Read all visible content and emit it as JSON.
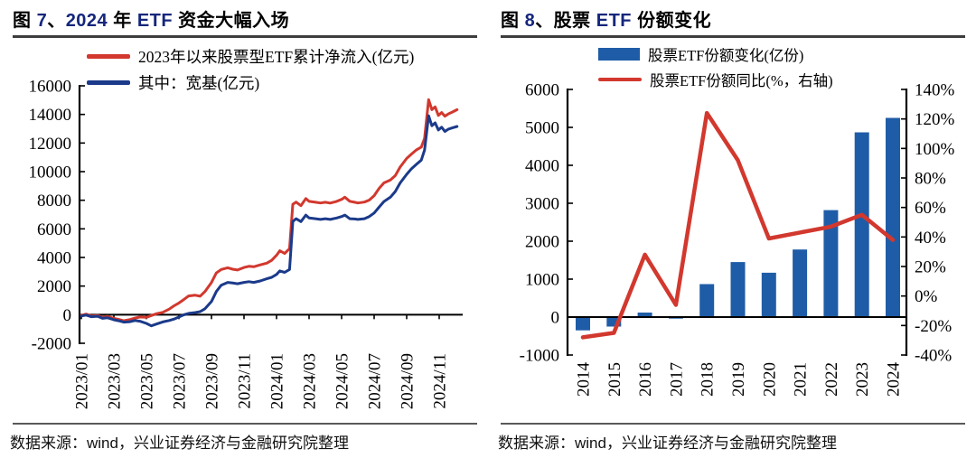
{
  "colors": {
    "red_line": "#d2382e",
    "navy_line": "#1b3a8a",
    "bar_blue": "#1f5ca7",
    "title_accent": "#14267b",
    "axis": "#000000"
  },
  "panels": [
    {
      "title_parts": [
        {
          "text": "图 ",
          "accent": false
        },
        {
          "text": "7",
          "accent": true
        },
        {
          "text": "、",
          "accent": false
        },
        {
          "text": "2024",
          "accent": true
        },
        {
          "text": " 年 ",
          "accent": false
        },
        {
          "text": "ETF",
          "accent": true
        },
        {
          "text": " 资金大幅入场",
          "accent": false
        }
      ],
      "legend": [
        {
          "swatch": "line",
          "color": "red_line",
          "label": "2023年以来股票型ETF累计净流入(亿元)"
        },
        {
          "swatch": "line",
          "color": "navy_line",
          "label": "其中：宽基(亿元)"
        }
      ],
      "source": "数据来源：wind，兴业证券经济与金融研究院整理",
      "chart_data": {
        "type": "line",
        "x_unit": "months since 2023/01",
        "xlim": [
          -0.1,
          23.4
        ],
        "ylim": [
          -2000,
          16000
        ],
        "y_ticks": [
          16000,
          14000,
          12000,
          10000,
          8000,
          6000,
          4000,
          2000,
          0,
          -2000
        ],
        "y_tick_labels": [
          "16000",
          "14000",
          "12000",
          "10000",
          "8000",
          "6000",
          "4000",
          "2000",
          "0",
          "-2000"
        ],
        "x_tick_positions": [
          0,
          2,
          4,
          6,
          8,
          10,
          12,
          14,
          16,
          18,
          20,
          22
        ],
        "x_tick_labels": [
          "2023/01",
          "2023/03",
          "2023/05",
          "2023/07",
          "2023/09",
          "2023/11",
          "2024/01",
          "2024/03",
          "2024/05",
          "2024/07",
          "2024/09",
          "2024/11"
        ],
        "grid": false,
        "series": [
          {
            "name": "2023年以来股票型ETF累计净流入(亿元)",
            "color": "red_line",
            "points": [
              [
                0,
                -50
              ],
              [
                0.3,
                40
              ],
              [
                0.6,
                -90
              ],
              [
                1,
                -60
              ],
              [
                1.3,
                -190
              ],
              [
                1.6,
                -120
              ],
              [
                2,
                -260
              ],
              [
                2.3,
                -330
              ],
              [
                2.6,
                -430
              ],
              [
                3,
                -340
              ],
              [
                3.3,
                -240
              ],
              [
                3.6,
                -160
              ],
              [
                4,
                -190
              ],
              [
                4.3,
                -60
              ],
              [
                4.6,
                60
              ],
              [
                5,
                160
              ],
              [
                5.4,
                390
              ],
              [
                5.7,
                620
              ],
              [
                6,
                820
              ],
              [
                6.3,
                1060
              ],
              [
                6.6,
                1310
              ],
              [
                7,
                1360
              ],
              [
                7.3,
                1290
              ],
              [
                7.6,
                1620
              ],
              [
                8,
                2250
              ],
              [
                8.3,
                2920
              ],
              [
                8.6,
                3160
              ],
              [
                9,
                3280
              ],
              [
                9.3,
                3180
              ],
              [
                9.6,
                3120
              ],
              [
                10,
                3300
              ],
              [
                10.3,
                3380
              ],
              [
                10.6,
                3350
              ],
              [
                11,
                3480
              ],
              [
                11.4,
                3600
              ],
              [
                11.7,
                3800
              ],
              [
                12,
                4150
              ],
              [
                12.2,
                4470
              ],
              [
                12.5,
                4280
              ],
              [
                12.8,
                4620
              ],
              [
                13,
                7720
              ],
              [
                13.2,
                7870
              ],
              [
                13.5,
                7620
              ],
              [
                13.8,
                8120
              ],
              [
                14,
                7920
              ],
              [
                14.4,
                7860
              ],
              [
                14.7,
                7810
              ],
              [
                15,
                7860
              ],
              [
                15.3,
                7800
              ],
              [
                15.7,
                7920
              ],
              [
                16,
                8060
              ],
              [
                16.2,
                8210
              ],
              [
                16.5,
                7930
              ],
              [
                16.8,
                7860
              ],
              [
                17,
                7810
              ],
              [
                17.4,
                7870
              ],
              [
                17.7,
                8010
              ],
              [
                18,
                8320
              ],
              [
                18.3,
                8820
              ],
              [
                18.6,
                9210
              ],
              [
                19,
                9420
              ],
              [
                19.3,
                9720
              ],
              [
                19.6,
                10320
              ],
              [
                20,
                10920
              ],
              [
                20.3,
                11230
              ],
              [
                20.6,
                11520
              ],
              [
                20.9,
                11720
              ],
              [
                21.1,
                12330
              ],
              [
                21.35,
                15030
              ],
              [
                21.55,
                14330
              ],
              [
                21.75,
                14530
              ],
              [
                21.95,
                13930
              ],
              [
                22.15,
                14130
              ],
              [
                22.35,
                13880
              ],
              [
                22.55,
                14030
              ],
              [
                22.8,
                14160
              ],
              [
                23.1,
                14330
              ]
            ]
          },
          {
            "name": "其中：宽基(亿元)",
            "color": "navy_line",
            "points": [
              [
                0,
                -90
              ],
              [
                0.3,
                -30
              ],
              [
                0.6,
                -140
              ],
              [
                1,
                -110
              ],
              [
                1.3,
                -260
              ],
              [
                1.6,
                -210
              ],
              [
                2,
                -360
              ],
              [
                2.3,
                -430
              ],
              [
                2.6,
                -520
              ],
              [
                3,
                -490
              ],
              [
                3.3,
                -410
              ],
              [
                3.6,
                -460
              ],
              [
                4,
                -610
              ],
              [
                4.3,
                -780
              ],
              [
                4.6,
                -660
              ],
              [
                5,
                -510
              ],
              [
                5.4,
                -410
              ],
              [
                5.7,
                -310
              ],
              [
                6,
                -160
              ],
              [
                6.3,
                -10
              ],
              [
                6.6,
                90
              ],
              [
                7,
                150
              ],
              [
                7.3,
                210
              ],
              [
                7.6,
                410
              ],
              [
                8,
                920
              ],
              [
                8.3,
                1620
              ],
              [
                8.6,
                2060
              ],
              [
                9,
                2260
              ],
              [
                9.3,
                2210
              ],
              [
                9.6,
                2160
              ],
              [
                10,
                2260
              ],
              [
                10.3,
                2310
              ],
              [
                10.6,
                2260
              ],
              [
                11,
                2360
              ],
              [
                11.4,
                2510
              ],
              [
                11.7,
                2610
              ],
              [
                12,
                2810
              ],
              [
                12.2,
                3060
              ],
              [
                12.5,
                2960
              ],
              [
                12.8,
                3160
              ],
              [
                13,
                6510
              ],
              [
                13.2,
                6710
              ],
              [
                13.5,
                6510
              ],
              [
                13.8,
                6960
              ],
              [
                14,
                6760
              ],
              [
                14.4,
                6710
              ],
              [
                14.7,
                6660
              ],
              [
                15,
                6710
              ],
              [
                15.3,
                6660
              ],
              [
                15.7,
                6760
              ],
              [
                16,
                6860
              ],
              [
                16.2,
                6960
              ],
              [
                16.5,
                6710
              ],
              [
                16.8,
                6690
              ],
              [
                17,
                6660
              ],
              [
                17.4,
                6710
              ],
              [
                17.7,
                6860
              ],
              [
                18,
                7110
              ],
              [
                18.3,
                7510
              ],
              [
                18.6,
                7910
              ],
              [
                19,
                8210
              ],
              [
                19.3,
                8610
              ],
              [
                19.6,
                9210
              ],
              [
                20,
                9810
              ],
              [
                20.3,
                10210
              ],
              [
                20.6,
                10510
              ],
              [
                20.9,
                10810
              ],
              [
                21.1,
                11510
              ],
              [
                21.35,
                13910
              ],
              [
                21.55,
                13210
              ],
              [
                21.75,
                13410
              ],
              [
                21.95,
                12910
              ],
              [
                22.15,
                13110
              ],
              [
                22.35,
                12810
              ],
              [
                22.55,
                12960
              ],
              [
                22.8,
                13060
              ],
              [
                23.1,
                13160
              ]
            ]
          }
        ]
      }
    },
    {
      "title_parts": [
        {
          "text": "图 ",
          "accent": false
        },
        {
          "text": "8",
          "accent": true
        },
        {
          "text": "、股票 ",
          "accent": false
        },
        {
          "text": "ETF",
          "accent": true
        },
        {
          "text": " 份额变化",
          "accent": false
        }
      ],
      "legend": [
        {
          "swatch": "rect",
          "color": "bar_blue",
          "label": "股票ETF份额变化(亿份)"
        },
        {
          "swatch": "line",
          "color": "red_line",
          "label": "股票ETF份额同比(%，右轴)"
        }
      ],
      "source": "数据来源：wind，兴业证券经济与金融研究院整理",
      "chart_data": {
        "type": "bar+line",
        "categories": [
          "2014",
          "2015",
          "2016",
          "2017",
          "2018",
          "2019",
          "2020",
          "2021",
          "2022",
          "2023",
          "2024"
        ],
        "bar_series": {
          "name": "股票ETF份额变化(亿份)",
          "color": "bar_blue",
          "axis": "left",
          "values": [
            -350,
            -250,
            120,
            -40,
            870,
            1450,
            1170,
            1780,
            2820,
            4870,
            5250
          ]
        },
        "line_series": {
          "name": "股票ETF份额同比(%，右轴)",
          "color": "red_line",
          "axis": "right",
          "values": [
            -28,
            -25,
            28,
            -6,
            124,
            92,
            39,
            43,
            47,
            55,
            38
          ]
        },
        "left_ylim": [
          -1000,
          6000
        ],
        "left_ticks": [
          6000,
          5000,
          4000,
          3000,
          2000,
          1000,
          0,
          -1000
        ],
        "left_tick_labels": [
          "6000",
          "5000",
          "4000",
          "3000",
          "2000",
          "1000",
          "0",
          "-1000"
        ],
        "right_ylim": [
          -40,
          140
        ],
        "right_ticks": [
          140,
          120,
          100,
          80,
          60,
          40,
          20,
          0,
          -20,
          -40
        ],
        "right_tick_labels": [
          "140%",
          "120%",
          "100%",
          "80%",
          "60%",
          "40%",
          "20%",
          "0%",
          "-20%",
          "-40%"
        ],
        "grid": false
      }
    }
  ]
}
